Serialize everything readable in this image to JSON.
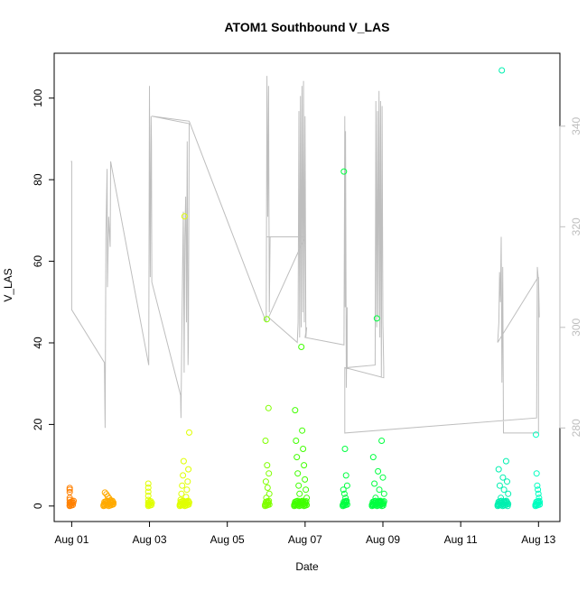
{
  "chart_data": {
    "type": "scatter",
    "title": "ATOM1 Southbound V_LAS",
    "xlabel": "Date",
    "ylabel": "V_LAS",
    "x_tick_labels": [
      "Aug 01",
      "Aug 03",
      "Aug 05",
      "Aug 07",
      "Aug 09",
      "Aug 11",
      "Aug 13"
    ],
    "x_tick_days": [
      1,
      3,
      5,
      7,
      9,
      11,
      13
    ],
    "xlim_days": [
      0.55,
      13.55
    ],
    "y_ticks": [
      0,
      20,
      40,
      60,
      80,
      100
    ],
    "ylim": [
      -3.8,
      111
    ],
    "y2_ticks": [
      280,
      300,
      320,
      340
    ],
    "y2lim": [
      261.4,
      354.5
    ],
    "grid": false,
    "legend": "none",
    "colors": {
      "overlay_line": "#bebebe",
      "axis": "#000000",
      "secondary_axis": "#bebebe",
      "point_palette": [
        "#ff8000",
        "#ffaa00",
        "#e0ff00",
        "#c8ff00",
        "#80ff00",
        "#40ff00",
        "#00ff40",
        "#00ff70",
        "#00f0b0",
        "#00ffc0"
      ]
    },
    "point_groups": [
      {
        "day_start": 0.95,
        "day_end": 1.05,
        "y": [
          0.2,
          0.8,
          1.5,
          2.0,
          3.4,
          4.0,
          4.4
        ],
        "color": "#ff8000"
      },
      {
        "day_start": 1.82,
        "day_end": 2.07,
        "y": [
          0.2,
          0.5,
          0.9,
          1.4,
          1.9,
          2.4,
          2.9,
          3.3
        ],
        "color": "#ffaa00"
      },
      {
        "day_start": 2.97,
        "day_end": 3.06,
        "y": [
          0.3,
          0.8,
          1.5,
          2.5,
          3.5,
          4.5,
          5.5
        ],
        "color": "#e0ff00"
      },
      {
        "day_start": 3.78,
        "day_end": 4.02,
        "y": [
          0.3,
          0.9,
          1.5,
          2.2,
          3.0,
          4.0,
          5.0,
          6.0,
          7.5,
          9.0,
          11.0,
          18.0,
          71.0
        ],
        "color": "#e0ff00"
      },
      {
        "day_start": 5.97,
        "day_end": 6.08,
        "y": [
          0.3,
          1.0,
          2.0,
          3.0,
          4.5,
          6.0,
          8.0,
          10.0,
          16.0,
          24.0,
          45.8
        ],
        "color": "#80ff00"
      },
      {
        "day_start": 6.72,
        "day_end": 7.04,
        "y": [
          0.3,
          1.0,
          2.0,
          3.0,
          4.0,
          5.0,
          6.5,
          8.0,
          10.0,
          12.0,
          14.0,
          16.0,
          18.5,
          23.5,
          39.0
        ],
        "color": "#40ff00"
      },
      {
        "day_start": 7.97,
        "day_end": 8.08,
        "y": [
          0.3,
          1.0,
          2.0,
          3.0,
          4.0,
          5.0,
          7.5,
          14.0,
          82.0
        ],
        "color": "#00ff40"
      },
      {
        "day_start": 8.72,
        "day_end": 9.03,
        "y": [
          0.3,
          1.0,
          2.0,
          3.0,
          4.0,
          5.5,
          7.0,
          8.5,
          12.0,
          16.0,
          46.0
        ],
        "color": "#00ff40"
      },
      {
        "day_start": 11.95,
        "day_end": 12.22,
        "y": [
          0.3,
          1.0,
          2.0,
          3.0,
          4.0,
          5.0,
          6.0,
          7.0,
          9.0,
          11.0,
          106.8
        ],
        "color": "#00f0b0"
      },
      {
        "day_start": 12.92,
        "day_end": 13.03,
        "y": [
          0.3,
          1.0,
          2.0,
          3.0,
          4.0,
          5.0,
          8.0,
          17.5
        ],
        "color": "#00ffc0"
      }
    ],
    "overlay_line": {
      "axis": "secondary",
      "points": [
        [
          0.98,
          333.0
        ],
        [
          1.0,
          333.0
        ],
        [
          1.0,
          303.5
        ],
        [
          1.84,
          293.0
        ],
        [
          1.86,
          280.0
        ],
        [
          1.88,
          318.5
        ],
        [
          1.91,
          331.5
        ],
        [
          1.92,
          308.0
        ],
        [
          1.95,
          322.0
        ],
        [
          1.99,
          316.0
        ],
        [
          2.0,
          333.0
        ],
        [
          2.98,
          292.5
        ],
        [
          3.0,
          348.0
        ],
        [
          3.02,
          310.0
        ],
        [
          3.04,
          342.0
        ],
        [
          3.05,
          337.0
        ],
        [
          3.06,
          309.0
        ],
        [
          3.8,
          286.5
        ],
        [
          3.81,
          282.0
        ],
        [
          3.83,
          298.0
        ],
        [
          3.85,
          312.0
        ],
        [
          3.87,
          323.0
        ],
        [
          3.89,
          291.0
        ],
        [
          3.91,
          318.0
        ],
        [
          3.93,
          326.0
        ],
        [
          3.95,
          301.0
        ],
        [
          3.97,
          337.0
        ],
        [
          3.99,
          292.5
        ],
        [
          4.0,
          296.0
        ],
        [
          4.02,
          340.5
        ],
        [
          3.06,
          342.0
        ],
        [
          4.02,
          341.0
        ],
        [
          6.0,
          301.0
        ],
        [
          6.02,
          350.0
        ],
        [
          6.04,
          322.0
        ],
        [
          6.06,
          348.0
        ],
        [
          6.08,
          303.0
        ],
        [
          6.1,
          318.0
        ],
        [
          6.0,
          318.0
        ],
        [
          7.0,
          318.0
        ],
        [
          6.06,
          302.0
        ],
        [
          6.8,
          297.0
        ],
        [
          6.82,
          301.0
        ],
        [
          6.84,
          343.0
        ],
        [
          6.86,
          298.0
        ],
        [
          6.88,
          346.0
        ],
        [
          6.9,
          300.0
        ],
        [
          6.92,
          348.0
        ],
        [
          6.94,
          303.0
        ],
        [
          6.96,
          349.0
        ],
        [
          6.98,
          301.0
        ],
        [
          7.0,
          342.0
        ],
        [
          7.02,
          298.0
        ],
        [
          7.04,
          300.0
        ],
        [
          7.0,
          298.0
        ],
        [
          8.0,
          296.5
        ],
        [
          8.02,
          342.0
        ],
        [
          8.03,
          304.0
        ],
        [
          8.04,
          339.0
        ],
        [
          8.06,
          288.0
        ],
        [
          8.08,
          304.0
        ],
        [
          8.08,
          292.0
        ],
        [
          8.8,
          292.5
        ],
        [
          8.82,
          345.0
        ],
        [
          8.84,
          300.0
        ],
        [
          8.86,
          343.0
        ],
        [
          8.88,
          302.0
        ],
        [
          8.9,
          347.0
        ],
        [
          8.92,
          298.0
        ],
        [
          8.94,
          345.0
        ],
        [
          8.96,
          290.0
        ],
        [
          8.98,
          344.0
        ],
        [
          9.0,
          301.0
        ],
        [
          9.02,
          292.0
        ],
        [
          9.02,
          290.0
        ],
        [
          8.02,
          292.0
        ],
        [
          8.02,
          279.0
        ],
        [
          12.95,
          282.0
        ],
        [
          12.97,
          312.0
        ],
        [
          12.99,
          310.0
        ],
        [
          11.95,
          297.0
        ],
        [
          11.98,
          301.0
        ],
        [
          12.0,
          311.0
        ],
        [
          12.02,
          305.0
        ],
        [
          12.04,
          318.0
        ],
        [
          12.06,
          289.0
        ],
        [
          12.08,
          312.0
        ],
        [
          12.1,
          279.0
        ],
        [
          13.0,
          279.0
        ],
        [
          13.0,
          310.0
        ],
        [
          13.02,
          302.0
        ]
      ]
    }
  }
}
